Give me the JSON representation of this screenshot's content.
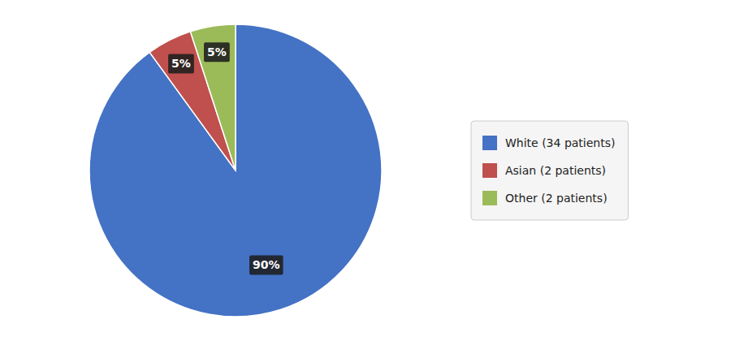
{
  "chart_data": {
    "type": "pie",
    "categories": [
      "White (34 patients)",
      "Asian (2 patients)",
      "Other (2 patients)"
    ],
    "values": [
      90,
      5,
      5
    ],
    "value_labels": [
      "90%",
      "5%",
      "5%"
    ],
    "colors": [
      "#4472C4",
      "#C0504D",
      "#9BBB59"
    ],
    "data_labels": true,
    "legend": "right"
  }
}
